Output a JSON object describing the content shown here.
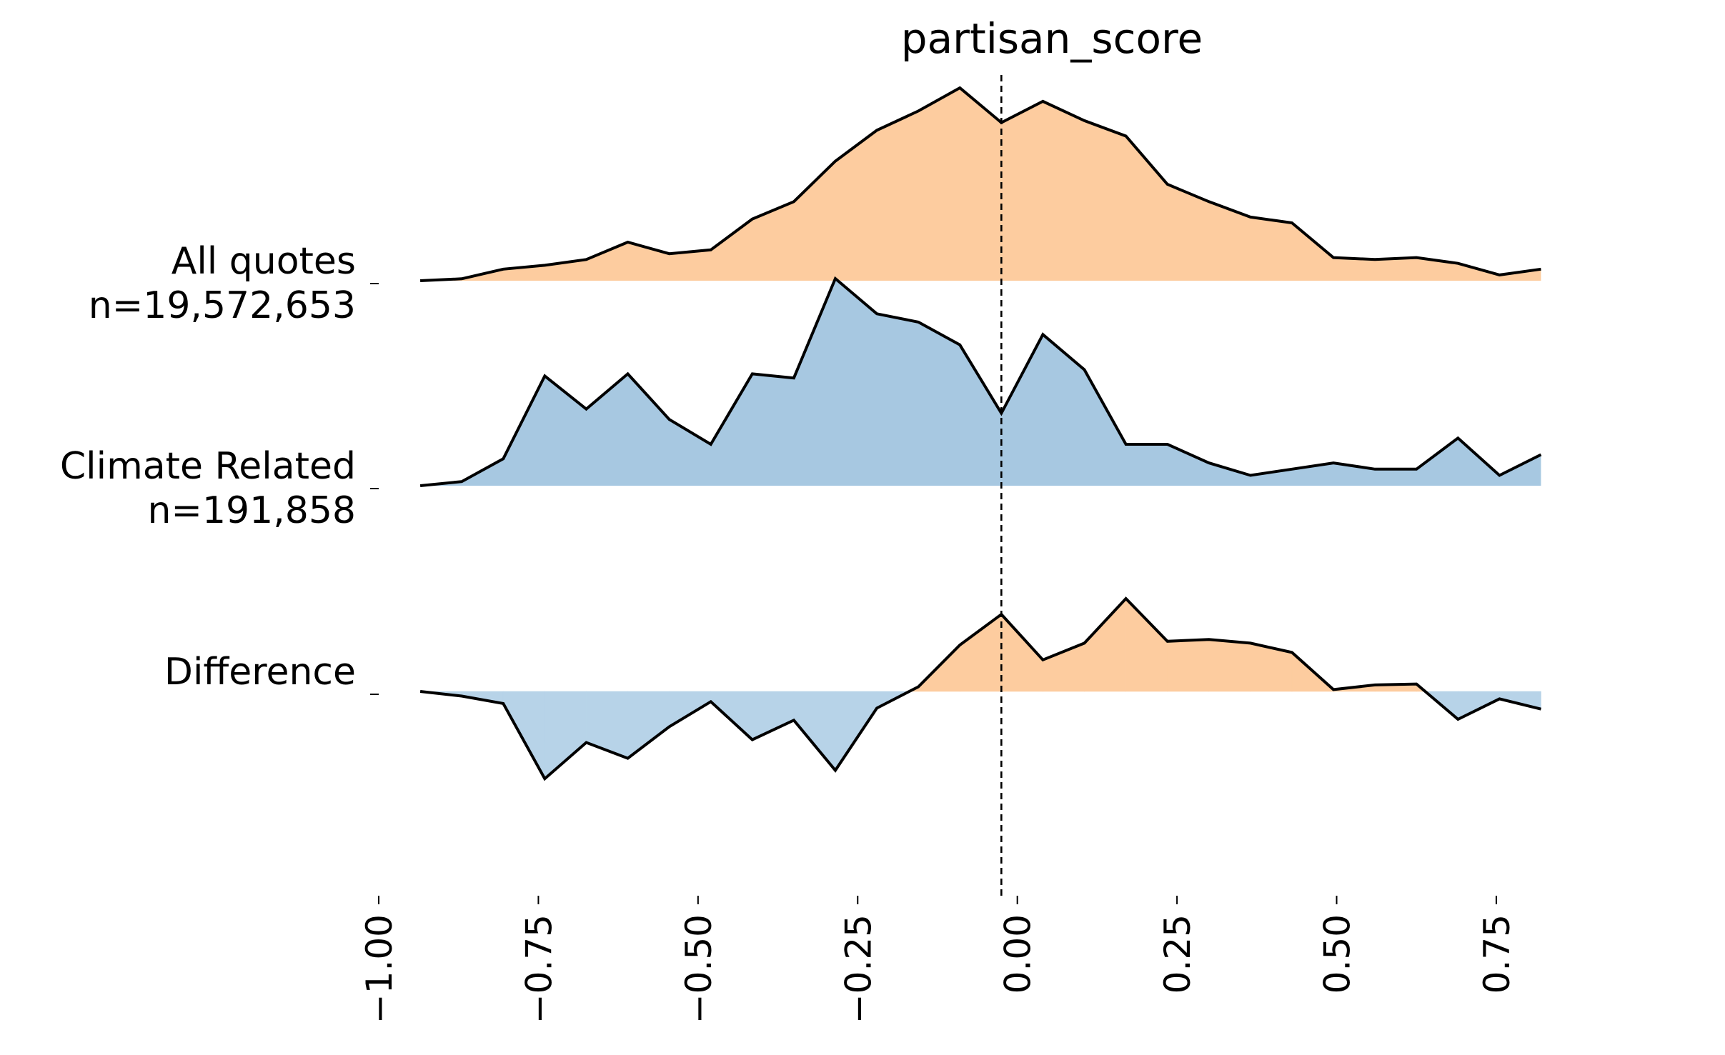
{
  "chart_data": {
    "type": "area",
    "title": "partisan_score",
    "xlabel": "",
    "ylabel": "",
    "xlim": [
      -1.0,
      0.9
    ],
    "x_ticks": [
      "−1.00",
      "−0.75",
      "−0.50",
      "−0.25",
      "0.00",
      "0.25",
      "0.50",
      "0.75"
    ],
    "reference_line_x": -0.025,
    "colors": {
      "positive_fill": "#fdcc9f",
      "negative_fill": "#a7c8e1",
      "line": "#000000"
    },
    "x": [
      -0.935,
      -0.87,
      -0.805,
      -0.74,
      -0.675,
      -0.61,
      -0.545,
      -0.48,
      -0.415,
      -0.35,
      -0.285,
      -0.22,
      -0.155,
      -0.09,
      -0.025,
      0.04,
      0.105,
      0.17,
      0.235,
      0.3,
      0.365,
      0.43,
      0.495,
      0.56,
      0.625,
      0.69,
      0.755,
      0.82
    ],
    "series": [
      {
        "name": "All quotes",
        "label_lines": [
          "All quotes",
          "n=19,572,653"
        ],
        "fill": "#fdcc9f",
        "values": [
          0.0,
          0.01,
          0.06,
          0.08,
          0.11,
          0.2,
          0.14,
          0.16,
          0.32,
          0.41,
          0.62,
          0.78,
          0.88,
          1.0,
          0.82,
          0.93,
          0.83,
          0.75,
          0.5,
          0.41,
          0.33,
          0.3,
          0.12,
          0.11,
          0.12,
          0.09,
          0.03,
          0.06
        ]
      },
      {
        "name": "Climate Related",
        "label_lines": [
          "Climate Related",
          "n=191,858"
        ],
        "fill": "#a7c8e1",
        "values": [
          0.0,
          0.02,
          0.13,
          0.53,
          0.37,
          0.54,
          0.32,
          0.2,
          0.54,
          0.52,
          1.0,
          0.83,
          0.79,
          0.68,
          0.35,
          0.73,
          0.56,
          0.2,
          0.2,
          0.11,
          0.05,
          0.08,
          0.11,
          0.08,
          0.08,
          0.23,
          0.05,
          0.15
        ]
      },
      {
        "name": "Difference",
        "label_lines": [
          "Difference"
        ],
        "fill_positive": "#fdcc9f",
        "fill_negative": "#b7d3e8",
        "values": [
          0.0,
          -0.05,
          -0.13,
          -0.94,
          -0.55,
          -0.72,
          -0.38,
          -0.11,
          -0.52,
          -0.31,
          -0.85,
          -0.18,
          0.05,
          0.5,
          0.83,
          0.34,
          0.52,
          1.0,
          0.54,
          0.56,
          0.52,
          0.42,
          0.02,
          0.07,
          0.08,
          -0.3,
          -0.08,
          -0.19
        ]
      }
    ]
  }
}
